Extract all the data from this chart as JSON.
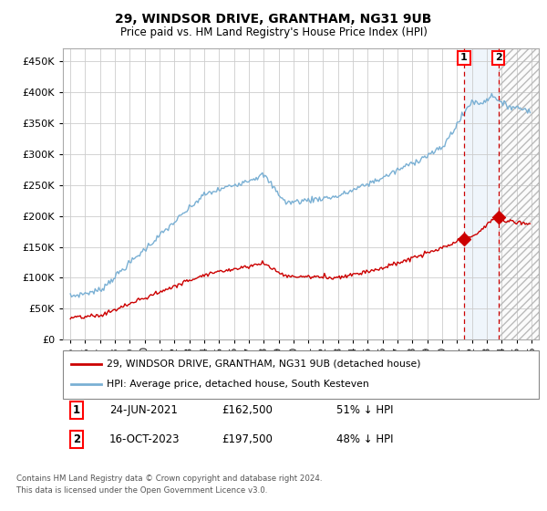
{
  "title": "29, WINDSOR DRIVE, GRANTHAM, NG31 9UB",
  "subtitle": "Price paid vs. HM Land Registry's House Price Index (HPI)",
  "ytick_vals": [
    0,
    50000,
    100000,
    150000,
    200000,
    250000,
    300000,
    350000,
    400000,
    450000
  ],
  "ylim": [
    0,
    470000
  ],
  "xlim_start": 1994.5,
  "xlim_end": 2026.5,
  "hpi_color": "#7ab0d4",
  "price_color": "#cc0000",
  "marker1_date": 2021.47,
  "marker2_date": 2023.79,
  "marker1_price": 162500,
  "marker2_price": 197500,
  "legend1": "29, WINDSOR DRIVE, GRANTHAM, NG31 9UB (detached house)",
  "legend2": "HPI: Average price, detached house, South Kesteven",
  "annotation1_date": "24-JUN-2021",
  "annotation1_price": "£162,500",
  "annotation1_pct": "51% ↓ HPI",
  "annotation2_date": "16-OCT-2023",
  "annotation2_price": "£197,500",
  "annotation2_pct": "48% ↓ HPI",
  "footer1": "Contains HM Land Registry data © Crown copyright and database right 2024.",
  "footer2": "This data is licensed under the Open Government Licence v3.0.",
  "background_color": "#ffffff",
  "grid_color": "#cccccc"
}
